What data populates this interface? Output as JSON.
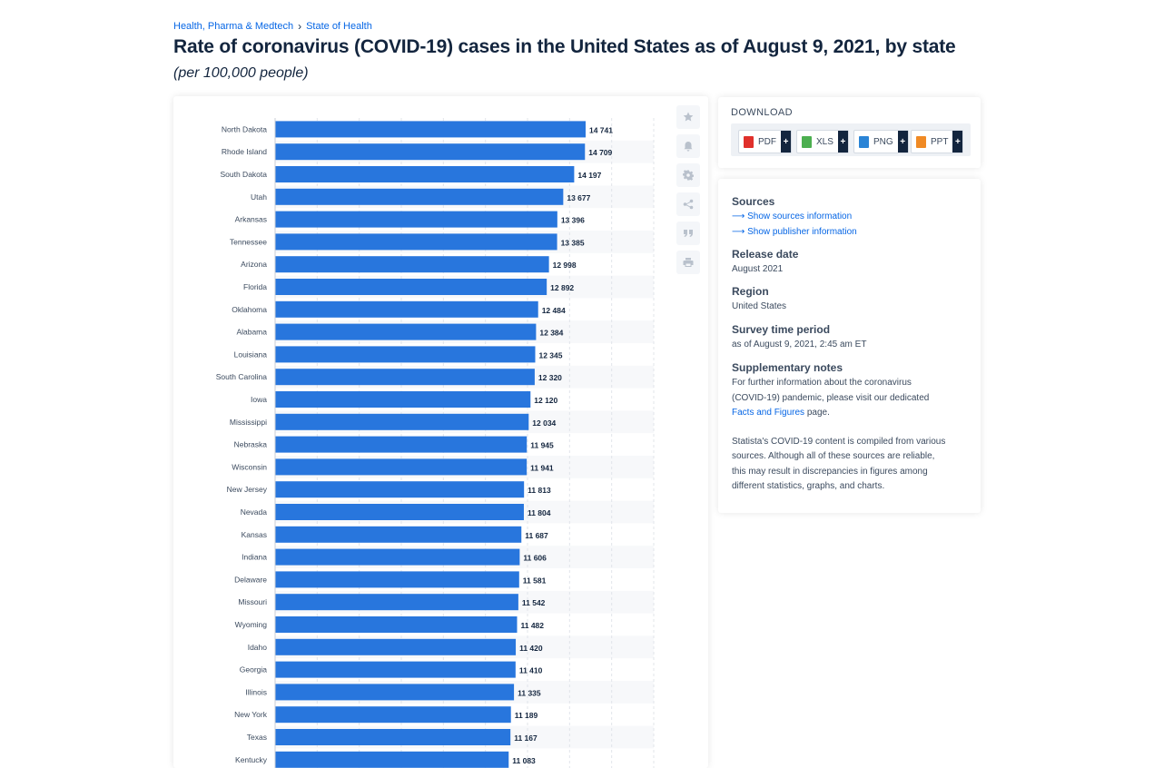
{
  "breadcrumb": {
    "item1": "Health, Pharma & Medtech",
    "separator": "›",
    "item2": "State of Health"
  },
  "title": "Rate of coronavirus (COVID-19) cases in the United States as of August 9, 2021, by state",
  "subtitle": "(per 100,000 people)",
  "toolbar": {
    "icons": [
      "star-icon",
      "bell-icon",
      "gear-icon",
      "share-icon",
      "quote-icon",
      "print-icon"
    ]
  },
  "download": {
    "label": "DOWNLOAD",
    "buttons": [
      {
        "label": "PDF",
        "plus": "+",
        "color": "#e0302b"
      },
      {
        "label": "XLS",
        "plus": "+",
        "color": "#4caf50"
      },
      {
        "label": "PNG",
        "plus": "+",
        "color": "#2a84d6"
      },
      {
        "label": "PPT",
        "plus": "+",
        "color": "#f08a24"
      }
    ]
  },
  "sources": {
    "heading": "Sources",
    "show_sources": "⟶ Show sources information",
    "show_publisher": "⟶ Show publisher information"
  },
  "release": {
    "heading": "Release date",
    "value": "August 2021"
  },
  "region": {
    "heading": "Region",
    "value": "United States"
  },
  "survey": {
    "heading": "Survey time period",
    "value": "as of August 9, 2021, 2:45 am ET"
  },
  "notes": {
    "heading": "Supplementary notes",
    "line1": "For further information about the coronavirus",
    "line2": "(COVID-19) pandemic, please visit our dedicated",
    "link": "Facts and Figures",
    "after_link": " page.",
    "p2_line1": "Statista's COVID-19 content is compiled from various",
    "p2_line2": "sources. Although all of these sources are reliable,",
    "p2_line3": "this may result in discrepancies in figures among",
    "p2_line4": "different statistics, graphs, and charts."
  },
  "chart_data": {
    "type": "bar",
    "orientation": "horizontal",
    "bar_color": "#2876dd",
    "grid": true,
    "xlim": [
      0,
      18000
    ],
    "categories": [
      "North Dakota",
      "Rhode Island",
      "South Dakota",
      "Utah",
      "Arkansas",
      "Tennessee",
      "Arizona",
      "Florida",
      "Oklahoma",
      "Alabama",
      "Louisiana",
      "South Carolina",
      "Iowa",
      "Mississippi",
      "Nebraska",
      "Wisconsin",
      "New Jersey",
      "Nevada",
      "Kansas",
      "Indiana",
      "Delaware",
      "Missouri",
      "Wyoming",
      "Idaho",
      "Georgia",
      "Illinois",
      "New York",
      "Texas",
      "Kentucky"
    ],
    "values": [
      14741,
      14709,
      14197,
      13677,
      13396,
      13385,
      12998,
      12892,
      12484,
      12384,
      12345,
      12320,
      12120,
      12034,
      11945,
      11941,
      11813,
      11804,
      11687,
      11606,
      11581,
      11542,
      11482,
      11420,
      11410,
      11335,
      11189,
      11167,
      11083
    ],
    "value_labels": [
      "14 741",
      "14 709",
      "14 197",
      "13 677",
      "13 396",
      "13 385",
      "12 998",
      "12 892",
      "12 484",
      "12 384",
      "12 345",
      "12 320",
      "12 120",
      "12 034",
      "11 945",
      "11 941",
      "11 813",
      "11 804",
      "11 687",
      "11 606",
      "11 581",
      "11 542",
      "11 482",
      "11 420",
      "11 410",
      "11 335",
      "11 189",
      "11 167",
      "11 083"
    ]
  }
}
